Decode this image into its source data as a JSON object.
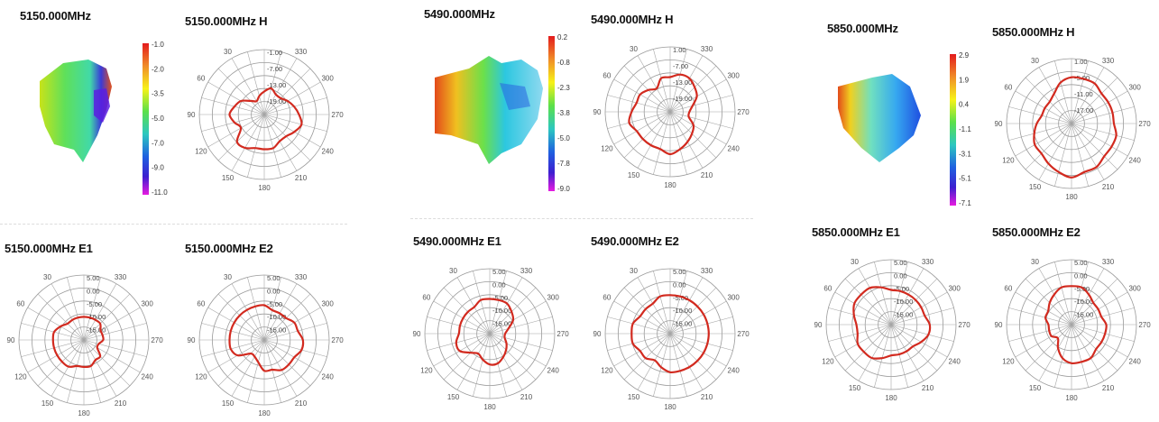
{
  "chart_data": [
    {
      "group": "5150",
      "surface": {
        "title": "5150.000MHz",
        "colorbar": [
          "-1.0",
          "-2.0",
          "-3.5",
          "-5.0",
          "-7.0",
          "-9.0",
          "-11.0"
        ]
      },
      "polars": [
        {
          "key": "H",
          "title": "5150.000MHz  H",
          "type": "polar",
          "ticks": [
            "-1.00",
            "-7.00",
            "-13.00",
            "-19.00"
          ],
          "angles": [
            "330",
            "300",
            "270",
            "240",
            "210",
            "180",
            "150",
            "120",
            "90",
            "60",
            "30"
          ],
          "values": [
            6,
            5,
            4,
            5,
            7,
            8,
            9,
            8,
            7,
            10,
            10,
            9,
            9,
            9,
            8,
            8,
            9,
            10,
            9,
            8,
            7,
            6,
            6,
            7
          ]
        },
        {
          "key": "E1",
          "title": "5150.000MHz  E1",
          "type": "polar",
          "ticks": [
            "5.00",
            "0.00",
            "-5.00",
            "-10.00",
            "-15.00"
          ],
          "angles": [
            "330",
            "300",
            "270",
            "240",
            "210",
            "180",
            "150",
            "120",
            "90",
            "60",
            "30"
          ],
          "values": [
            6,
            6,
            6,
            6,
            7,
            8,
            8,
            8,
            8,
            8,
            8,
            7,
            7,
            7,
            6,
            6,
            4,
            4,
            5,
            5,
            5,
            6,
            6,
            6
          ]
        },
        {
          "key": "E2",
          "title": "5150.000MHz  E2",
          "type": "polar",
          "ticks": [
            "5.00",
            "0.00",
            "-5.00",
            "-10.00",
            "-15.00"
          ],
          "angles": [
            "330",
            "300",
            "270",
            "240",
            "210",
            "180",
            "150",
            "120",
            "90",
            "60",
            "30"
          ],
          "values": [
            9,
            9,
            9,
            9,
            9,
            9,
            9,
            9,
            8,
            5,
            5,
            6,
            8,
            8,
            9,
            9,
            9,
            10,
            10,
            9,
            9,
            8,
            8,
            8
          ]
        }
      ]
    },
    {
      "group": "5490",
      "surface": {
        "title": "5490.000MHz",
        "colorbar": [
          "0.2",
          "-0.8",
          "-2.3",
          "-3.8",
          "-5.0",
          "-7.8",
          "-9.0"
        ]
      },
      "polars": [
        {
          "key": "H",
          "title": "5490.000MHz  H",
          "type": "polar",
          "ticks": [
            "1.00",
            "-7.00",
            "-13.00",
            "-19.00"
          ],
          "angles": [
            "330",
            "300",
            "270",
            "240",
            "210",
            "180",
            "150",
            "120",
            "90",
            "60",
            "30"
          ],
          "values": [
            9,
            9,
            7,
            8,
            9,
            9,
            10,
            11,
            10,
            10,
            10,
            10,
            11,
            10,
            9,
            8,
            7,
            5,
            5,
            6,
            8,
            9,
            10,
            10
          ]
        },
        {
          "key": "E1",
          "title": "5490.000MHz  E1",
          "type": "polar",
          "ticks": [
            "5.00",
            "0.00",
            "-5.00",
            "-10.00",
            "-15.00"
          ],
          "angles": [
            "330",
            "300",
            "270",
            "240",
            "210",
            "180",
            "150",
            "120",
            "90",
            "60",
            "30"
          ],
          "values": [
            9,
            9,
            8,
            8,
            8,
            8,
            8,
            9,
            9,
            7,
            6,
            7,
            8,
            8,
            7,
            6,
            5,
            4,
            4,
            5,
            7,
            8,
            9,
            9
          ]
        },
        {
          "key": "E2",
          "title": "5490.000MHz  E2",
          "type": "polar",
          "ticks": [
            "5.00",
            "0.00",
            "-5.00",
            "-10.00",
            "-15.00"
          ],
          "angles": [
            "330",
            "300",
            "270",
            "240",
            "210",
            "180",
            "150",
            "120",
            "90",
            "60",
            "30"
          ],
          "values": [
            10,
            10,
            9,
            9,
            9,
            10,
            10,
            10,
            9,
            9,
            8,
            9,
            10,
            10,
            10,
            10,
            10,
            10,
            10,
            10,
            10,
            10,
            10,
            10
          ]
        }
      ]
    },
    {
      "group": "5850",
      "surface": {
        "title": "5850.000MHz",
        "colorbar": [
          "2.9",
          "1.9",
          "0.4",
          "-1.1",
          "-3.1",
          "-5.1",
          "-7.1"
        ]
      },
      "polars": [
        {
          "key": "H",
          "title": "5850.000MHz  H",
          "type": "polar",
          "ticks": [
            "1.00",
            "-5.00",
            "-11.00",
            "-17.00"
          ],
          "angles": [
            "330",
            "300",
            "270",
            "240",
            "210",
            "180",
            "150",
            "120",
            "90",
            "60",
            "30"
          ],
          "values": [
            12,
            11,
            9,
            8,
            8,
            8,
            9,
            10,
            11,
            11,
            12,
            13,
            14,
            13,
            13,
            12,
            12,
            12,
            11,
            11,
            11,
            11,
            12,
            12
          ]
        },
        {
          "key": "E1",
          "title": "5850.000MHz  E1",
          "type": "polar",
          "ticks": [
            "5.00",
            "0.00",
            "-5.00",
            "-10.00",
            "-15.00"
          ],
          "angles": [
            "330",
            "300",
            "270",
            "240",
            "210",
            "180",
            "150",
            "120",
            "90",
            "60",
            "30"
          ],
          "values": [
            9,
            10,
            11,
            11,
            11,
            10,
            9,
            9,
            10,
            10,
            10,
            9,
            8,
            8,
            8,
            8,
            9,
            10,
            10,
            9,
            9,
            9,
            9,
            9
          ]
        },
        {
          "key": "E2",
          "title": "5850.000MHz  E2",
          "type": "polar",
          "ticks": [
            "5.00",
            "0.00",
            "-5.00",
            "-10.00",
            "-15.00"
          ],
          "angles": [
            "330",
            "300",
            "270",
            "240",
            "210",
            "180",
            "150",
            "120",
            "90",
            "60",
            "30"
          ],
          "values": [
            10,
            10,
            9,
            8,
            7,
            7,
            6,
            6,
            6,
            5,
            7,
            9,
            10,
            10,
            10,
            9,
            9,
            9,
            9,
            8,
            8,
            8,
            9,
            10
          ]
        }
      ]
    }
  ],
  "colors": {
    "trace": "#d22a1f",
    "grid": "#9a9a9a",
    "colorbar_stops": [
      "#e31a1c",
      "#f08c28",
      "#f7f218",
      "#5be04a",
      "#2cc7c0",
      "#1f5fe0",
      "#3d1fd0",
      "#c21be6"
    ]
  }
}
